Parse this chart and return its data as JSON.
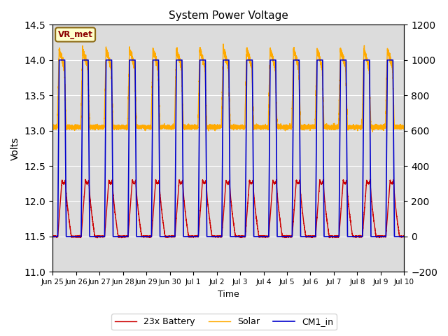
{
  "title": "System Power Voltage",
  "xlabel": "Time",
  "ylabel_left": "Volts",
  "ylim_left": [
    11.0,
    14.5
  ],
  "ylim_right": [
    -200,
    1200
  ],
  "yticks_left": [
    11.0,
    11.5,
    12.0,
    12.5,
    13.0,
    13.5,
    14.0,
    14.5
  ],
  "yticks_right": [
    -200,
    0,
    200,
    400,
    600,
    800,
    1000,
    1200
  ],
  "x_tick_labels": [
    "Jun 25",
    "Jun 26",
    "Jun 27",
    "Jun 28",
    "Jun 29",
    "Jun 30",
    "Jul 1",
    "Jul 2",
    "Jul 3",
    "Jul 4",
    "Jul 5",
    "Jul 6",
    "Jul 7",
    "Jul 8",
    "Jul 9",
    "Jul 10"
  ],
  "color_battery": "#cc0000",
  "color_solar": "#ffaa00",
  "color_cm1": "#0000cc",
  "legend_labels": [
    "23x Battery",
    "Solar",
    "CM1_in"
  ],
  "annotation_text": "VR_met",
  "bg_color": "#ffffff",
  "plot_bg_color": "#dcdcdc",
  "n_days": 15,
  "base_battery": 11.5,
  "peak_battery": 12.3,
  "base_cm1": 11.5,
  "peak_cm1": 14.0,
  "base_solar": 13.05,
  "peak_solar": 14.15,
  "points_per_day": 480
}
